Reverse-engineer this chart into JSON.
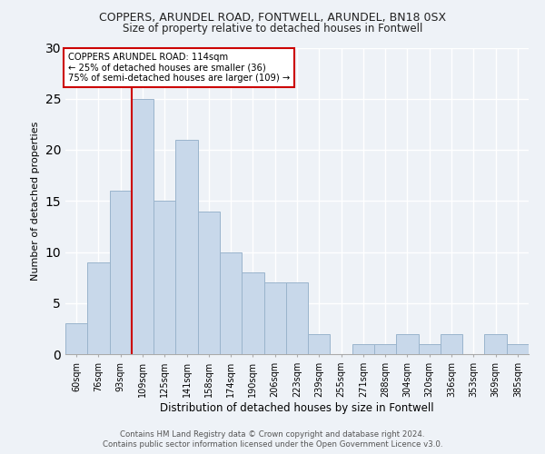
{
  "title": "COPPERS, ARUNDEL ROAD, FONTWELL, ARUNDEL, BN18 0SX",
  "subtitle": "Size of property relative to detached houses in Fontwell",
  "xlabel": "Distribution of detached houses by size in Fontwell",
  "ylabel": "Number of detached properties",
  "bar_color": "#c8d8ea",
  "bar_edge_color": "#9ab4cc",
  "categories": [
    "60sqm",
    "76sqm",
    "93sqm",
    "109sqm",
    "125sqm",
    "141sqm",
    "158sqm",
    "174sqm",
    "190sqm",
    "206sqm",
    "223sqm",
    "239sqm",
    "255sqm",
    "271sqm",
    "288sqm",
    "304sqm",
    "320sqm",
    "336sqm",
    "353sqm",
    "369sqm",
    "385sqm"
  ],
  "values": [
    3,
    9,
    16,
    25,
    15,
    21,
    14,
    10,
    8,
    7,
    7,
    2,
    0,
    1,
    1,
    2,
    1,
    2,
    0,
    2,
    1
  ],
  "marker_idx": 3,
  "marker_line_color": "#cc0000",
  "annotation_line1": "COPPERS ARUNDEL ROAD: 114sqm",
  "annotation_line2": "← 25% of detached houses are smaller (36)",
  "annotation_line3": "75% of semi-detached houses are larger (109) →",
  "annotation_box_color": "#ffffff",
  "annotation_box_edge": "#cc0000",
  "footer_line1": "Contains HM Land Registry data © Crown copyright and database right 2024.",
  "footer_line2": "Contains public sector information licensed under the Open Government Licence v3.0.",
  "ylim": [
    0,
    30
  ],
  "background_color": "#eef2f7",
  "grid_color": "#ffffff"
}
